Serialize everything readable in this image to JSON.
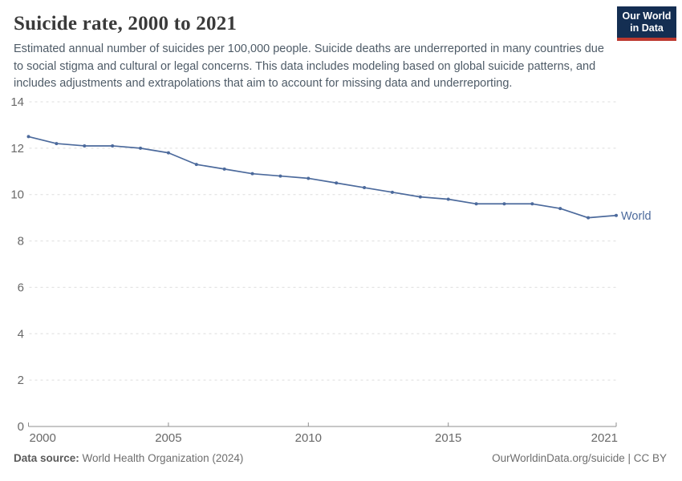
{
  "header": {
    "title": "Suicide rate, 2000 to 2021",
    "subtitle": "Estimated annual number of suicides per 100,000 people. Suicide deaths are underreported in many countries due to social stigma and cultural or legal concerns. This data includes modeling based on global suicide patterns, and includes adjustments and extrapolations that aim to account for missing data and underreporting.",
    "logo": {
      "line1": "Our World",
      "line2": "in Data"
    }
  },
  "chart_data": {
    "type": "line",
    "title": "Suicide rate, 2000 to 2021",
    "x": [
      2000,
      2001,
      2002,
      2003,
      2004,
      2005,
      2006,
      2007,
      2008,
      2009,
      2010,
      2011,
      2012,
      2013,
      2014,
      2015,
      2016,
      2017,
      2018,
      2019,
      2020,
      2021
    ],
    "series": [
      {
        "name": "World",
        "color": "#4c6a9c",
        "values": [
          12.5,
          12.2,
          12.1,
          12.1,
          12.0,
          11.8,
          11.3,
          11.1,
          10.9,
          10.8,
          10.7,
          10.5,
          10.3,
          10.1,
          9.9,
          9.8,
          9.6,
          9.6,
          9.6,
          9.4,
          9.0,
          9.1
        ]
      }
    ],
    "xlabel": "",
    "ylabel": "",
    "ylim": [
      0,
      14
    ],
    "yticks": [
      0,
      2,
      4,
      6,
      8,
      10,
      12,
      14
    ],
    "xticks": [
      2000,
      2005,
      2010,
      2015,
      2021
    ],
    "grid": "dashed-horizontal",
    "legend_position": "line-end-right",
    "colors": {
      "line": "#4c6a9c",
      "gridline": "#dedede",
      "axis": "#8f8f8f",
      "tick_text": "#696969"
    }
  },
  "footer": {
    "source_label": "Data source:",
    "source_value": " World Health Organization (2024)",
    "link": "OurWorldinData.org/suicide | CC BY"
  }
}
